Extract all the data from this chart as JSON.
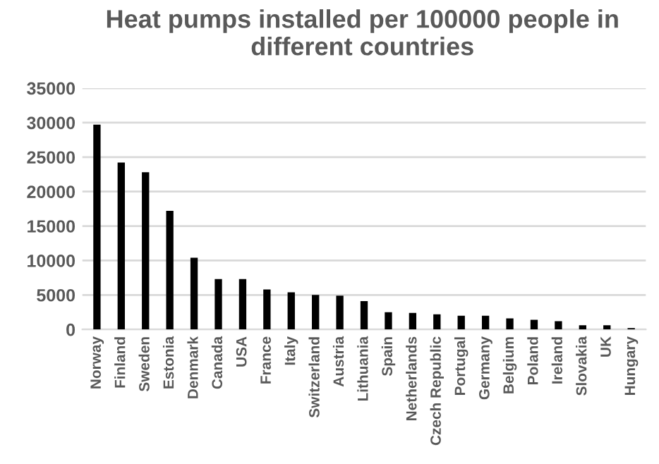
{
  "chart_data": {
    "type": "bar",
    "title": "Heat pumps installed per 100000 people in different countries",
    "categories": [
      "Norway",
      "Finland",
      "Sweden",
      "Estonia",
      "Denmark",
      "Canada",
      "USA",
      "France",
      "Italy",
      "Switzerland",
      "Austria",
      "Lithuania",
      "Spain",
      "Netherlands",
      "Czech Republic",
      "Portugal",
      "Germany",
      "Belgium",
      "Poland",
      "Ireland",
      "Slovakia",
      "UK",
      "Hungary"
    ],
    "values": [
      29700,
      24200,
      22800,
      17200,
      10400,
      7300,
      7300,
      5800,
      5400,
      5000,
      4900,
      4100,
      2500,
      2400,
      2200,
      2000,
      2000,
      1600,
      1400,
      1200,
      600,
      600,
      200
    ],
    "color": "#000000",
    "ylim": [
      0,
      35000
    ],
    "yticks": [
      0,
      5000,
      10000,
      15000,
      20000,
      25000,
      30000,
      35000
    ],
    "grid": "y"
  }
}
